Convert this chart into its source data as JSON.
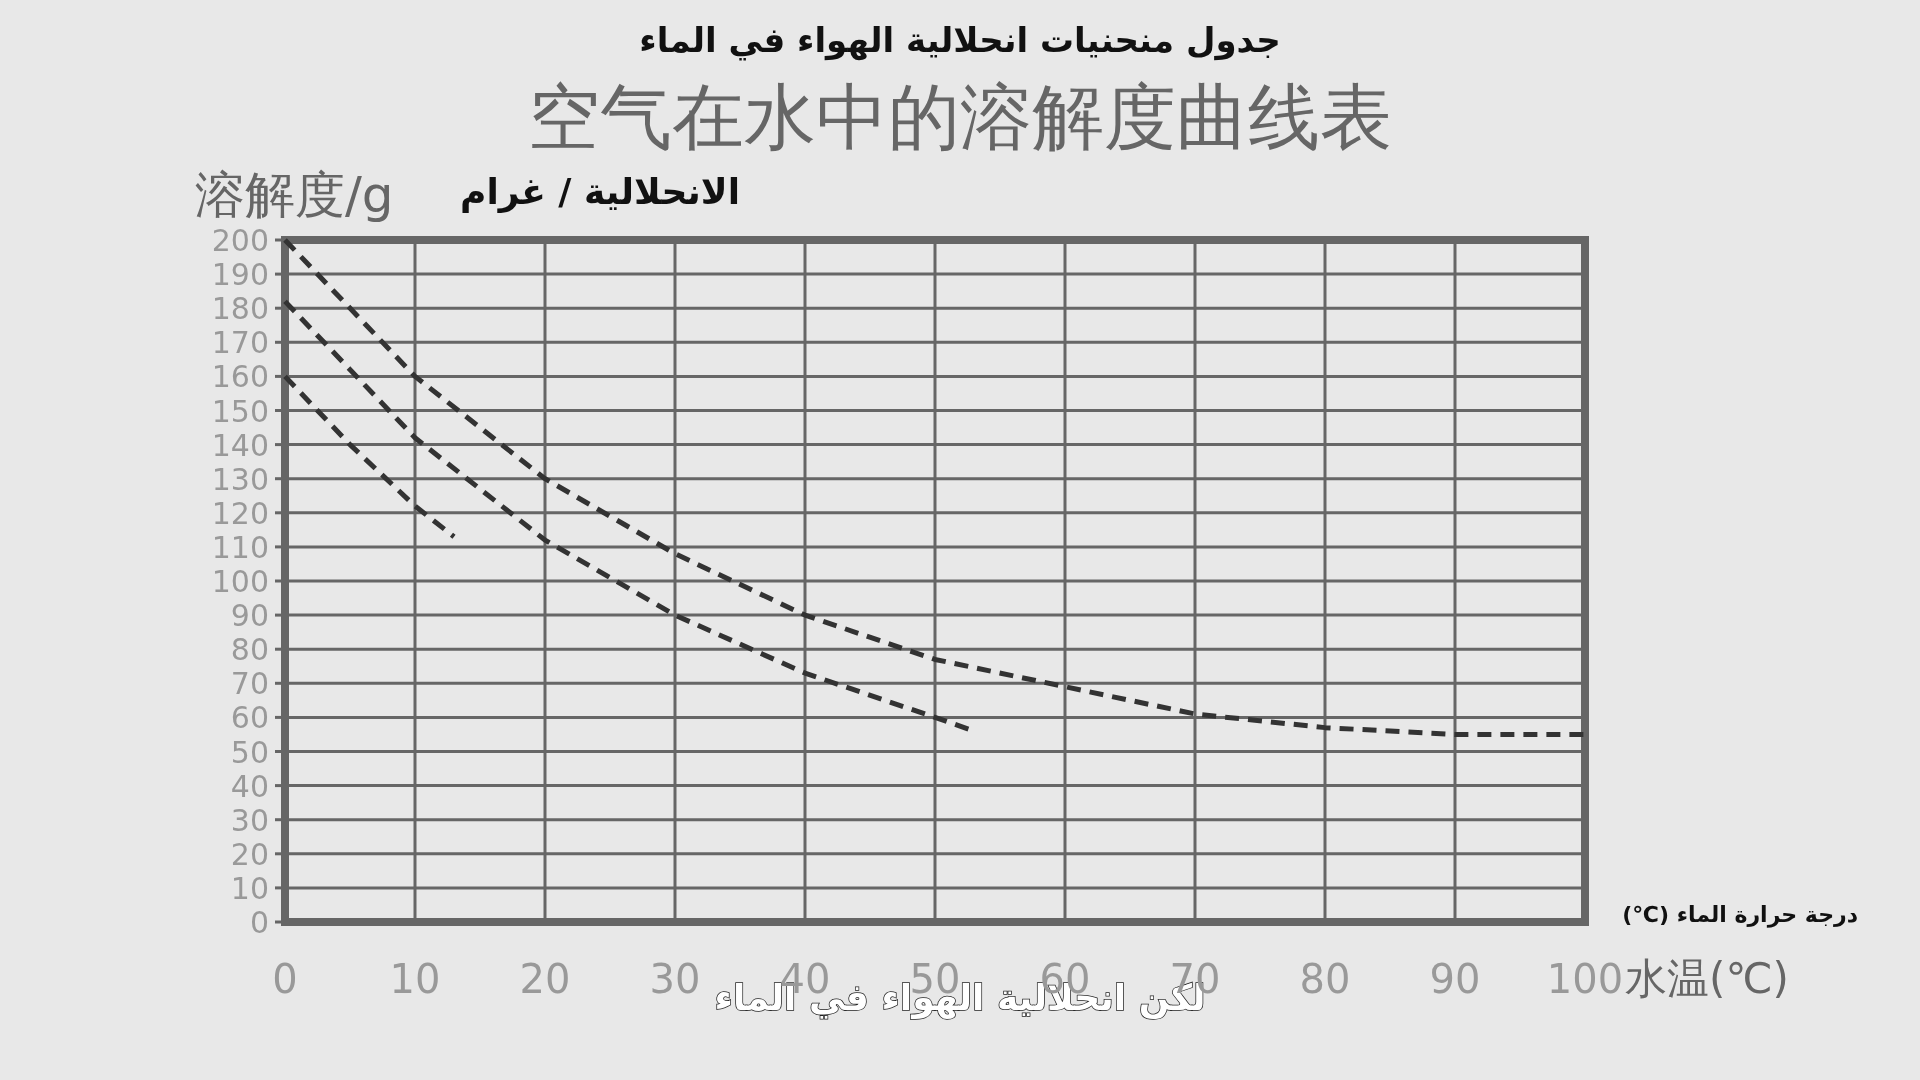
{
  "chart_data": {
    "type": "line",
    "title": "جدول منحنيات انحلالية الهواء في الماء",
    "subtitle": "空气在水中的溶解度曲线表",
    "ylabel": "溶解度/g",
    "xlabel": "水温(℃)",
    "annotations": [
      "الانحلالية / غرام",
      "درجة حرارة الماء (℃)",
      "لكن انحلالية الهواء في الماء"
    ],
    "series": [
      {
        "color": "#333333",
        "x": [
          0,
          10,
          20,
          30,
          40,
          50,
          60,
          70,
          80,
          90,
          100
        ],
        "values": [
          200,
          160,
          130,
          108,
          90,
          77,
          69,
          61,
          57,
          55,
          55
        ]
      },
      {
        "color": "#333333",
        "x": [
          0,
          10,
          20,
          30,
          40,
          50,
          53
        ],
        "values": [
          182,
          142,
          112,
          90,
          73,
          60,
          56
        ]
      },
      {
        "color": "#333333",
        "x": [
          0,
          5,
          10,
          13
        ],
        "values": [
          160,
          140,
          122,
          113
        ]
      }
    ],
    "xlim": [
      0,
      100
    ],
    "xticks": [
      0,
      10,
      20,
      30,
      40,
      50,
      60,
      70,
      80,
      90,
      100
    ],
    "ylim": [
      0,
      200
    ],
    "yticks": [
      0,
      10,
      20,
      30,
      40,
      50,
      60,
      70,
      80,
      90,
      100,
      110,
      120,
      130,
      140,
      150,
      160,
      170,
      180,
      190,
      200
    ],
    "grid": true,
    "line_style": "dashed",
    "marker": "none"
  }
}
